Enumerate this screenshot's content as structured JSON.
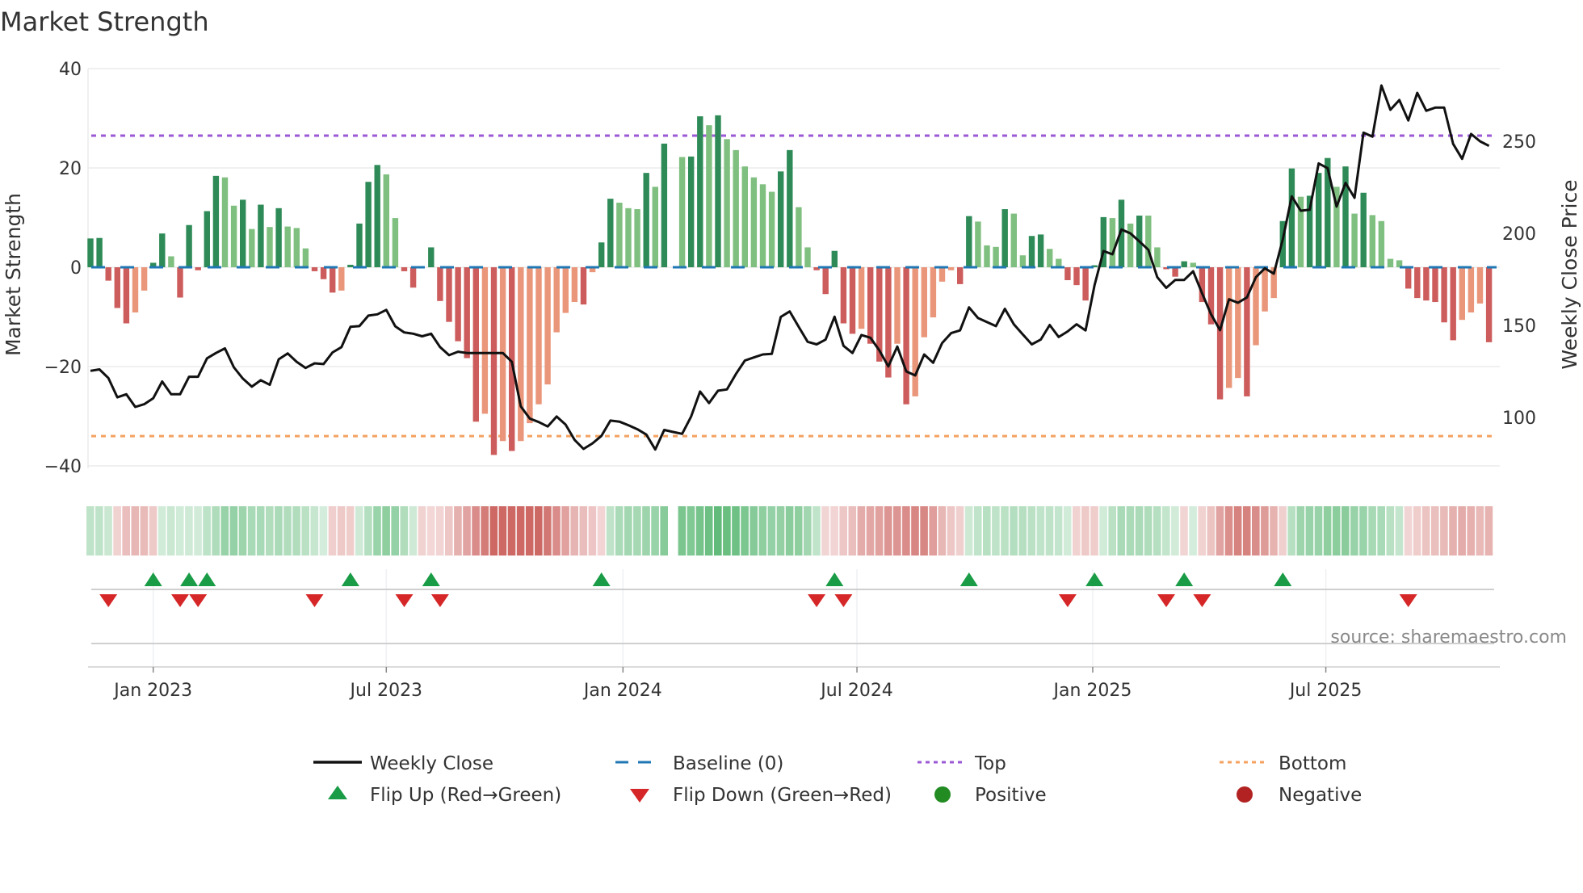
{
  "title": "Market Strength",
  "source": "source: sharemaestro.com",
  "colors": {
    "bar_up_strong": "#2e8b57",
    "bar_up_weak": "#7fbf7f",
    "bar_down_strong": "#cd5c5c",
    "bar_down_weak": "#e9967a",
    "price_line": "#111111",
    "baseline": "#1f77b4",
    "top": "#9b59d6",
    "bottom": "#f4a261",
    "flip_up": "#1a9c47",
    "flip_down": "#d62728",
    "positive": "#228b22",
    "negative": "#b22222"
  },
  "legend": {
    "weekly_close": "Weekly Close",
    "baseline": "Baseline (0)",
    "top": "Top",
    "bottom": "Bottom",
    "flip_up": "Flip Up (Red→Green)",
    "flip_down": "Flip Down (Green→Red)",
    "positive": "Positive",
    "negative": "Negative"
  },
  "chart_data": {
    "type": "bar",
    "title": "Market Strength",
    "ylabel": "Market Strength",
    "y2label": "Weekly Close Price",
    "ylim": [
      -40,
      40
    ],
    "yticks": [
      40,
      20,
      0,
      -20,
      -40
    ],
    "y2ticks": [
      250,
      200,
      150,
      100
    ],
    "top_level": 26.5,
    "bottom_level": -34,
    "baseline": 0,
    "x_ticks": [
      {
        "label": "Jan 2023",
        "week": 8
      },
      {
        "label": "Jul 2023",
        "week": 34
      },
      {
        "label": "Jan 2024",
        "week": 60.4
      },
      {
        "label": "Jul 2024",
        "week": 86.5
      },
      {
        "label": "Jan 2025",
        "week": 112.8
      },
      {
        "label": "Jul 2025",
        "week": 138.8
      }
    ],
    "series": [
      {
        "name": "Market Strength",
        "type": "bar",
        "values": [
          5.8,
          5.9,
          -2.7,
          -8.2,
          -11.3,
          -9.1,
          -4.7,
          0.9,
          6.8,
          2.2,
          -6.1,
          8.5,
          -0.6,
          11.3,
          18.4,
          18.1,
          12.4,
          13.6,
          7.7,
          12.6,
          8.1,
          11.9,
          8.2,
          7.9,
          3.8,
          -0.8,
          -2.4,
          -5.1,
          -4.7,
          0.5,
          8.8,
          17.2,
          20.6,
          18.7,
          9.9,
          -0.8,
          -4.1,
          0,
          4.0,
          -6.8,
          -11.0,
          -14.9,
          -18.3,
          -31.1,
          -29.5,
          -37.8,
          -35.0,
          -37.0,
          -35.0,
          -31.4,
          -27.6,
          -23.6,
          -13.1,
          -9.2,
          -7.0,
          -7.5,
          -1.0,
          5.0,
          13.8,
          13.0,
          11.9,
          11.7,
          19.0,
          16.2,
          24.9,
          null,
          22.2,
          22.3,
          30.4,
          28.6,
          30.6,
          25.8,
          23.6,
          20.3,
          18.1,
          16.7,
          15.2,
          19.3,
          23.6,
          12.1,
          4.0,
          -0.6,
          -5.4,
          3.3,
          -11.3,
          -13.4,
          -12.4,
          -15.4,
          -19.0,
          -22.2,
          -15.4,
          -27.6,
          -26.0,
          -14.1,
          -10.1,
          -2.9,
          -0.6,
          -3.4,
          10.3,
          9.2,
          4.4,
          4.1,
          11.7,
          10.8,
          2.4,
          6.3,
          6.6,
          3.7,
          1.7,
          -2.6,
          -3.6,
          -6.7,
          0.4,
          10.1,
          9.9,
          13.6,
          8.8,
          10.4,
          10.4,
          4.0,
          -0.4,
          -1.9,
          1.2,
          0.9,
          -7.0,
          -11.5,
          -26.6,
          -24.3,
          -22.3,
          -26.0,
          -15.7,
          -8.9,
          -6.2,
          9.3,
          19.9,
          14.2,
          14.4,
          19.0,
          22.0,
          16.2,
          20.3,
          10.8,
          15.0,
          10.5,
          9.3,
          1.7,
          1.4,
          -4.3,
          -6.2,
          -6.7,
          -7.0,
          -11.1,
          -14.7,
          -10.6,
          -9.1,
          -7.3,
          -15.1
        ]
      },
      {
        "name": "Weekly Close",
        "type": "line",
        "axis": "right",
        "values": [
          125.3,
          126.1,
          121.4,
          110.9,
          112.6,
          105.7,
          107.2,
          110.4,
          119.5,
          112.6,
          112.6,
          122.1,
          122.1,
          132.1,
          135.0,
          137.5,
          127.2,
          121.1,
          116.7,
          120.2,
          117.7,
          131.6,
          134.8,
          130.2,
          126.9,
          129.4,
          129.0,
          135.3,
          138.2,
          149.2,
          149.6,
          155.3,
          156.0,
          158.4,
          149.5,
          146.2,
          145.5,
          144.1,
          145.5,
          138.2,
          133.8,
          135.7,
          135.0,
          135.0,
          135.0,
          135.0,
          135.0,
          130.2,
          106.0,
          99.4,
          97.5,
          95.1,
          100.5,
          96.1,
          87.8,
          82.9,
          85.9,
          90.0,
          98.3,
          97.7,
          95.8,
          93.6,
          90.7,
          82.6,
          93.2,
          92.1,
          91.1,
          100.5,
          114.1,
          107.8,
          114.5,
          115.2,
          123.6,
          130.9,
          132.6,
          134.2,
          134.5,
          154.6,
          157.6,
          149.2,
          141.1,
          139.7,
          142.3,
          154.7,
          138.9,
          135.0,
          144.8,
          143.3,
          136.4,
          127.7,
          138.5,
          125.0,
          122.8,
          134.2,
          129.7,
          140.4,
          145.8,
          147.3,
          159.8,
          154.0,
          151.8,
          149.6,
          159.0,
          150.6,
          145.1,
          139.7,
          142.3,
          150.2,
          143.7,
          146.7,
          150.6,
          147.3,
          171.8,
          190.4,
          188.6,
          202.1,
          200.0,
          195.6,
          191.1,
          176.2,
          170.4,
          174.7,
          174.7,
          179.4,
          167.4,
          156.0,
          147.4,
          164.2,
          162.3,
          165.2,
          176.2,
          181.0,
          178.1,
          196.7,
          220.1,
          212.3,
          212.8,
          238.0,
          235.4,
          214.5,
          227.4,
          219.3,
          254.7,
          252.5,
          280.3,
          267.1,
          272.4,
          261.3,
          276.3,
          266.6,
          268.3,
          268.3,
          248.6,
          240.5,
          254.0,
          250.0,
          247.5
        ]
      }
    ],
    "grid": true,
    "legend_position": "bottom"
  }
}
